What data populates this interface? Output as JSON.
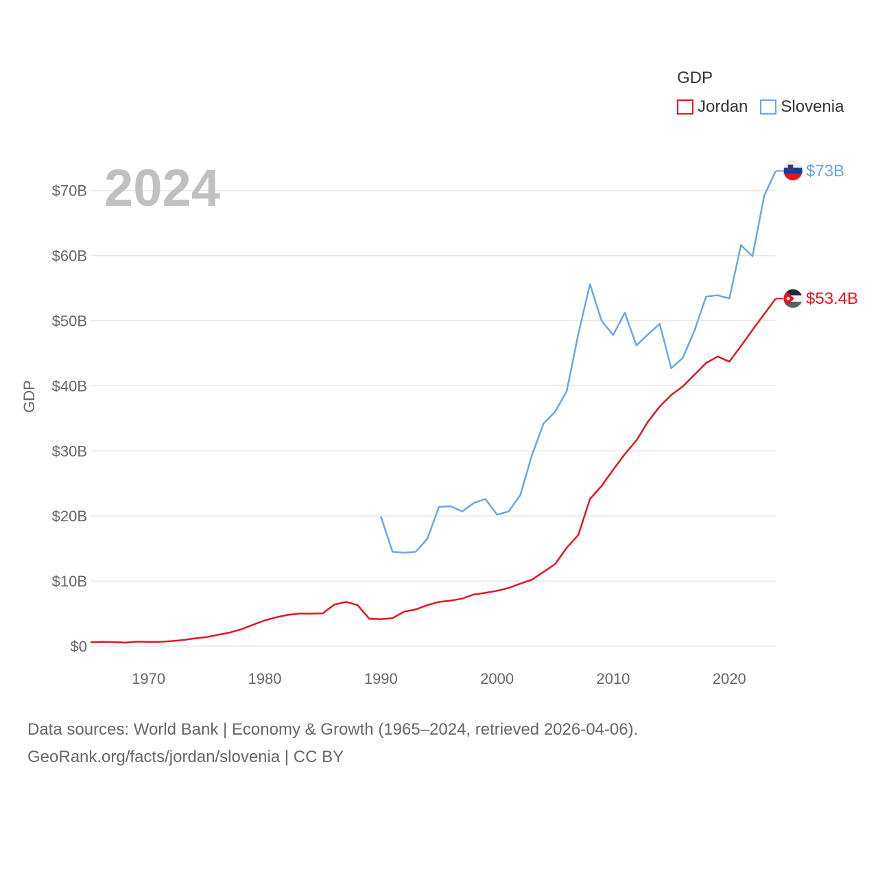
{
  "chart_data": {
    "type": "line",
    "year_label": "2024",
    "ylabel": "GDP",
    "ylim": [
      0,
      75
    ],
    "xlim": [
      1965,
      2024
    ],
    "y_ticks": [
      {
        "value": 0,
        "label": "$0"
      },
      {
        "value": 10,
        "label": "$10B"
      },
      {
        "value": 20,
        "label": "$20B"
      },
      {
        "value": 30,
        "label": "$30B"
      },
      {
        "value": 40,
        "label": "$40B"
      },
      {
        "value": 50,
        "label": "$50B"
      },
      {
        "value": 60,
        "label": "$60B"
      },
      {
        "value": 70,
        "label": "$70B"
      }
    ],
    "x_ticks": [
      {
        "value": 1970,
        "label": "1970"
      },
      {
        "value": 1980,
        "label": "1980"
      },
      {
        "value": 1990,
        "label": "1990"
      },
      {
        "value": 2000,
        "label": "2000"
      },
      {
        "value": 2010,
        "label": "2010"
      },
      {
        "value": 2020,
        "label": "2020"
      }
    ],
    "series": [
      {
        "name": "Jordan",
        "color": "#e8131f",
        "flag_icon": "jordan-flag-icon",
        "end_label": "$53.4B",
        "x": [
          1965,
          1966,
          1967,
          1968,
          1969,
          1970,
          1971,
          1972,
          1973,
          1974,
          1975,
          1976,
          1977,
          1978,
          1979,
          1980,
          1981,
          1982,
          1983,
          1984,
          1985,
          1986,
          1987,
          1988,
          1989,
          1990,
          1991,
          1992,
          1993,
          1994,
          1995,
          1996,
          1997,
          1998,
          1999,
          2000,
          2001,
          2002,
          2003,
          2004,
          2005,
          2006,
          2007,
          2008,
          2009,
          2010,
          2011,
          2012,
          2013,
          2014,
          2015,
          2016,
          2017,
          2018,
          2019,
          2020,
          2021,
          2022,
          2023,
          2024
        ],
        "values": [
          0.6,
          0.65,
          0.63,
          0.55,
          0.7,
          0.65,
          0.67,
          0.78,
          0.95,
          1.2,
          1.4,
          1.75,
          2.1,
          2.6,
          3.3,
          3.95,
          4.45,
          4.8,
          5.0,
          5.0,
          5.05,
          6.4,
          6.8,
          6.3,
          4.2,
          4.15,
          4.3,
          5.3,
          5.65,
          6.3,
          6.8,
          7.0,
          7.3,
          7.95,
          8.2,
          8.5,
          8.95,
          9.6,
          10.2,
          11.4,
          12.6,
          15.1,
          17.1,
          22.6,
          24.6,
          27.1,
          29.5,
          31.6,
          34.5,
          36.8,
          38.6,
          39.9,
          41.7,
          43.5,
          44.5,
          43.7,
          46.1,
          48.6,
          51.0,
          53.4
        ]
      },
      {
        "name": "Slovenia",
        "color": "#6aa6e2",
        "flag_icon": "slovenia-flag-icon",
        "end_label": "$73B",
        "x": [
          1990,
          1991,
          1992,
          1993,
          1994,
          1995,
          1996,
          1997,
          1998,
          1999,
          2000,
          2001,
          2002,
          2003,
          2004,
          2005,
          2006,
          2007,
          2008,
          2009,
          2010,
          2011,
          2012,
          2013,
          2014,
          2015,
          2016,
          2017,
          2018,
          2019,
          2020,
          2021,
          2022,
          2023,
          2024
        ],
        "values": [
          19.9,
          14.5,
          14.35,
          14.5,
          16.5,
          21.4,
          21.5,
          20.7,
          22.0,
          22.6,
          20.2,
          20.7,
          23.2,
          29.3,
          34.2,
          36.0,
          39.2,
          48.0,
          55.6,
          50.0,
          47.8,
          51.2,
          46.2,
          47.9,
          49.5,
          42.7,
          44.3,
          48.5,
          53.7,
          53.9,
          53.4,
          61.6,
          59.9,
          69.2,
          73.0
        ]
      }
    ]
  },
  "legend": {
    "title": "GDP",
    "items": [
      {
        "label": "Jordan",
        "color": "#e8131f"
      },
      {
        "label": "Slovenia",
        "color": "#6aa6e2"
      }
    ]
  },
  "footer": {
    "line1": "Data sources: World Bank | Economy & Growth (1965–2024, retrieved 2026-04-06).",
    "line2": "GeoRank.org/facts/jordan/slovenia | CC BY"
  }
}
